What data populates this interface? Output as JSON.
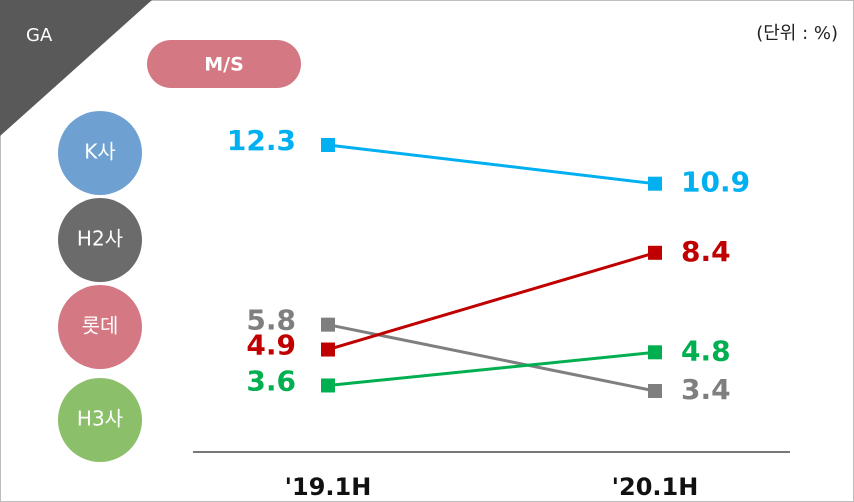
{
  "badge": "GA",
  "unit": "(단위 : %)",
  "chart_data": {
    "type": "line",
    "title": "M/S",
    "categories": [
      "'19.1H",
      "'20.1H"
    ],
    "series": [
      {
        "name": "K사",
        "color": "#00b0f0",
        "label_color": "#00b0f0",
        "badge_color": "#6fa0d2",
        "values": [
          12.3,
          10.9
        ]
      },
      {
        "name": "H2사",
        "color": "#7f7f7f",
        "label_color": "#7f7f7f",
        "badge_color": "#6b6b6b",
        "values": [
          5.8,
          3.4
        ]
      },
      {
        "name": "롯데",
        "color": "#c00000",
        "label_color": "#c00000",
        "badge_color": "#d47883",
        "values": [
          4.9,
          8.4
        ]
      },
      {
        "name": "H3사",
        "color": "#00b050",
        "label_color": "#00b050",
        "badge_color": "#8cbf6a",
        "values": [
          3.6,
          4.8
        ]
      }
    ]
  }
}
